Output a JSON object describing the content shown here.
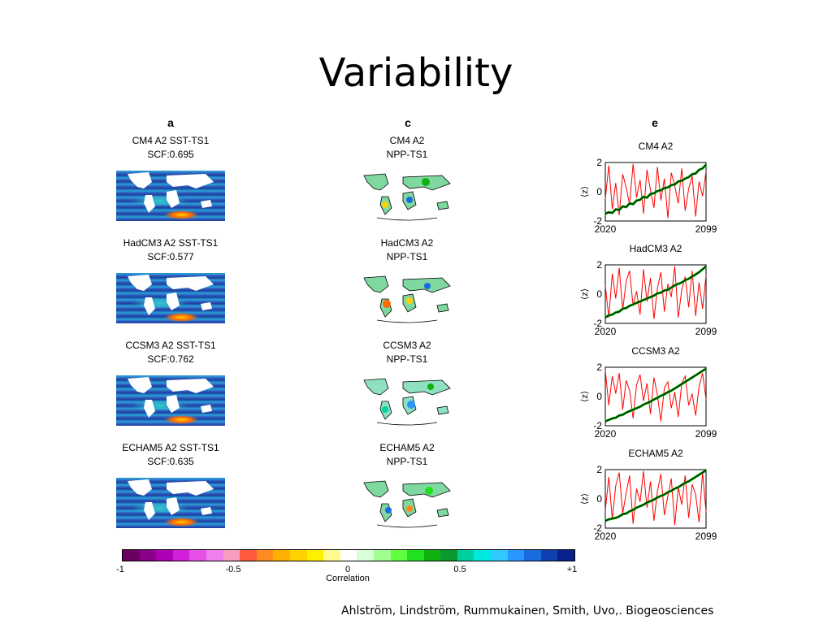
{
  "slide": {
    "title": "Variability",
    "citation": "Ahlström, Lindström, Rummukainen, Smith, Uvo,. Biogeosciences"
  },
  "columns": {
    "a": "a",
    "c": "c",
    "e": "e"
  },
  "panels_a": [
    {
      "title": "CM4 A2 SST-TS1",
      "scf": "SCF:0.695"
    },
    {
      "title": "HadCM3 A2 SST-TS1",
      "scf": "SCF:0.577"
    },
    {
      "title": "CCSM3 A2 SST-TS1",
      "scf": "SCF:0.762"
    },
    {
      "title": "ECHAM5 A2 SST-TS1",
      "scf": "SCF:0.635"
    }
  ],
  "panels_c": [
    {
      "model": "CM4 A2",
      "sub": "NPP-TS1"
    },
    {
      "model": "HadCM3 A2",
      "sub": "NPP-TS1"
    },
    {
      "model": "CCSM3 A2",
      "sub": "NPP-TS1"
    },
    {
      "model": "ECHAM5 A2",
      "sub": "NPP-TS1"
    }
  ],
  "colorbar": {
    "label": "Correlation",
    "ticks": [
      "-1",
      "-0.5",
      "0",
      "0.5",
      "+1"
    ],
    "colors": [
      "#6a005f",
      "#8a0087",
      "#b000b5",
      "#d220d8",
      "#e650e8",
      "#f080f0",
      "#f59cc0",
      "#ff5a3c",
      "#ff8a1e",
      "#ffb000",
      "#ffd200",
      "#fff000",
      "#fffa90",
      "#ffffff",
      "#d8ffd8",
      "#a0ff90",
      "#60ff40",
      "#20e020",
      "#10b010",
      "#0a9a30",
      "#00d0a0",
      "#00e8e0",
      "#30c8ff",
      "#2a96ff",
      "#1a6ae0",
      "#1040b0",
      "#0a208a"
    ]
  },
  "chart_data": {
    "type": "line",
    "title": "",
    "xlabel": "",
    "ylabel": "⟨z⟩",
    "xlim": [
      2020,
      2099
    ],
    "ylim": [
      -2,
      2
    ],
    "x_ticks": [
      "2020",
      "2099"
    ],
    "y_ticks": [
      "2",
      "0",
      "-2"
    ],
    "panels": [
      {
        "title": "CM4 A2",
        "series": [
          {
            "color": "#ff0000",
            "values": [
              -0.5,
              1.8,
              -1.2,
              0.6,
              -1.6,
              1.2,
              0.3,
              -0.9,
              1.9,
              -0.4,
              0.8,
              -1.5,
              1.5,
              0.1,
              -1.1,
              1.7,
              -0.6,
              0.9,
              -1.8,
              1.3,
              0.4,
              -0.8,
              1.6,
              -1.3,
              0.2,
              1.1,
              -1.7,
              0.7,
              -0.3,
              1.4
            ]
          },
          {
            "color": "#00aa00",
            "values": [
              -1.5,
              -1.4,
              -1.45,
              -1.2,
              -1.25,
              -1.0,
              -1.05,
              -0.8,
              -0.85,
              -0.6,
              -0.55,
              -0.35,
              -0.4,
              -0.15,
              -0.1,
              0.05,
              0.1,
              0.25,
              0.3,
              0.45,
              0.5,
              0.7,
              0.75,
              0.9,
              1.0,
              1.2,
              1.25,
              1.5,
              1.6,
              1.85
            ]
          }
        ]
      },
      {
        "title": "HadCM3 A2",
        "series": [
          {
            "color": "#ff0000",
            "values": [
              0.6,
              -1.6,
              1.4,
              -0.3,
              1.8,
              -1.1,
              0.9,
              1.6,
              -0.8,
              0.2,
              -1.4,
              1.7,
              -0.5,
              1.1,
              -1.7,
              0.4,
              1.5,
              -1.2,
              0.7,
              -0.2,
              1.9,
              -1.6,
              0.3,
              1.2,
              -0.9,
              1.6,
              -1.5,
              0.8,
              -1.0,
              1.3
            ]
          },
          {
            "color": "#00aa00",
            "values": [
              -1.6,
              -1.45,
              -1.4,
              -1.25,
              -1.2,
              -1.0,
              -0.95,
              -0.8,
              -0.7,
              -0.6,
              -0.5,
              -0.4,
              -0.3,
              -0.2,
              -0.1,
              0.05,
              0.1,
              0.25,
              0.3,
              0.45,
              0.6,
              0.7,
              0.8,
              0.95,
              1.05,
              1.2,
              1.35,
              1.5,
              1.7,
              1.9
            ]
          }
        ]
      },
      {
        "title": "CCSM3 A2",
        "series": [
          {
            "color": "#ff0000",
            "values": [
              1.8,
              -0.6,
              1.4,
              0.2,
              1.6,
              -0.9,
              1.1,
              0.4,
              -1.5,
              0.8,
              1.5,
              -0.3,
              0.9,
              -1.2,
              1.3,
              0.1,
              -1.7,
              0.6,
              1.0,
              -0.8,
              0.3,
              -1.4,
              0.9,
              1.4,
              -0.6,
              0.2,
              -1.3,
              0.7,
              1.6,
              -0.2
            ]
          },
          {
            "color": "#00aa00",
            "values": [
              -1.7,
              -1.6,
              -1.5,
              -1.45,
              -1.3,
              -1.25,
              -1.1,
              -1.0,
              -0.9,
              -0.8,
              -0.7,
              -0.55,
              -0.45,
              -0.35,
              -0.2,
              -0.1,
              0.05,
              0.15,
              0.3,
              0.4,
              0.55,
              0.7,
              0.85,
              1.0,
              1.15,
              1.3,
              1.45,
              1.6,
              1.75,
              1.9
            ]
          }
        ]
      },
      {
        "title": "ECHAM5 A2",
        "series": [
          {
            "color": "#ff0000",
            "values": [
              -0.8,
              1.5,
              -1.4,
              0.9,
              1.8,
              -1.0,
              0.4,
              1.6,
              -1.7,
              0.7,
              -0.2,
              1.9,
              -0.6,
              1.2,
              -1.5,
              0.5,
              1.7,
              -1.1,
              0.2,
              1.4,
              -1.8,
              0.8,
              -0.4,
              1.6,
              -1.3,
              1.0,
              0.3,
              -1.6,
              1.8,
              -0.9
            ]
          },
          {
            "color": "#00aa00",
            "values": [
              -1.5,
              -1.4,
              -1.35,
              -1.3,
              -1.2,
              -1.05,
              -1.0,
              -0.85,
              -0.75,
              -0.6,
              -0.5,
              -0.4,
              -0.25,
              -0.15,
              -0.05,
              0.1,
              0.2,
              0.3,
              0.45,
              0.55,
              0.7,
              0.8,
              0.95,
              1.1,
              1.2,
              1.35,
              1.5,
              1.65,
              1.8,
              1.95
            ]
          }
        ]
      }
    ]
  }
}
